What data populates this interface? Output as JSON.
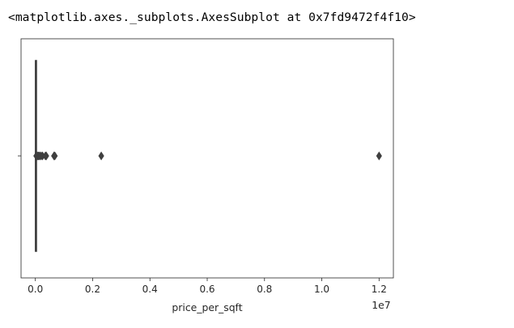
{
  "output_text": "<matplotlib.axes._subplots.AxesSubplot at 0x7fd9472f4f10>",
  "chart_data": {
    "type": "box",
    "orientation": "horizontal",
    "title": "",
    "xlabel": "price_per_sqft",
    "ylabel": "",
    "x_offset_label": "1e7",
    "xlim": [
      -0.05,
      1.25
    ],
    "x_ticks": [
      0.0,
      0.2,
      0.4,
      0.6,
      0.8,
      1.0,
      1.2
    ],
    "x_tick_labels": [
      "0.0",
      "0.2",
      "0.4",
      "0.6",
      "0.8",
      "1.0",
      "1.2"
    ],
    "grid": false,
    "box": {
      "whisker_low": 0.0,
      "q1": 0.0004,
      "median": 0.0006,
      "q3": 0.0008,
      "whisker_high": 0.0013
    },
    "outliers": [
      0.003,
      0.006,
      0.009,
      0.012,
      0.015,
      0.02,
      0.025,
      0.035,
      0.038,
      0.065,
      0.068,
      0.23,
      1.2
    ],
    "colors": {
      "box_face": "#3274a1",
      "line": "#3f3f3f",
      "spine": "#262626"
    }
  }
}
